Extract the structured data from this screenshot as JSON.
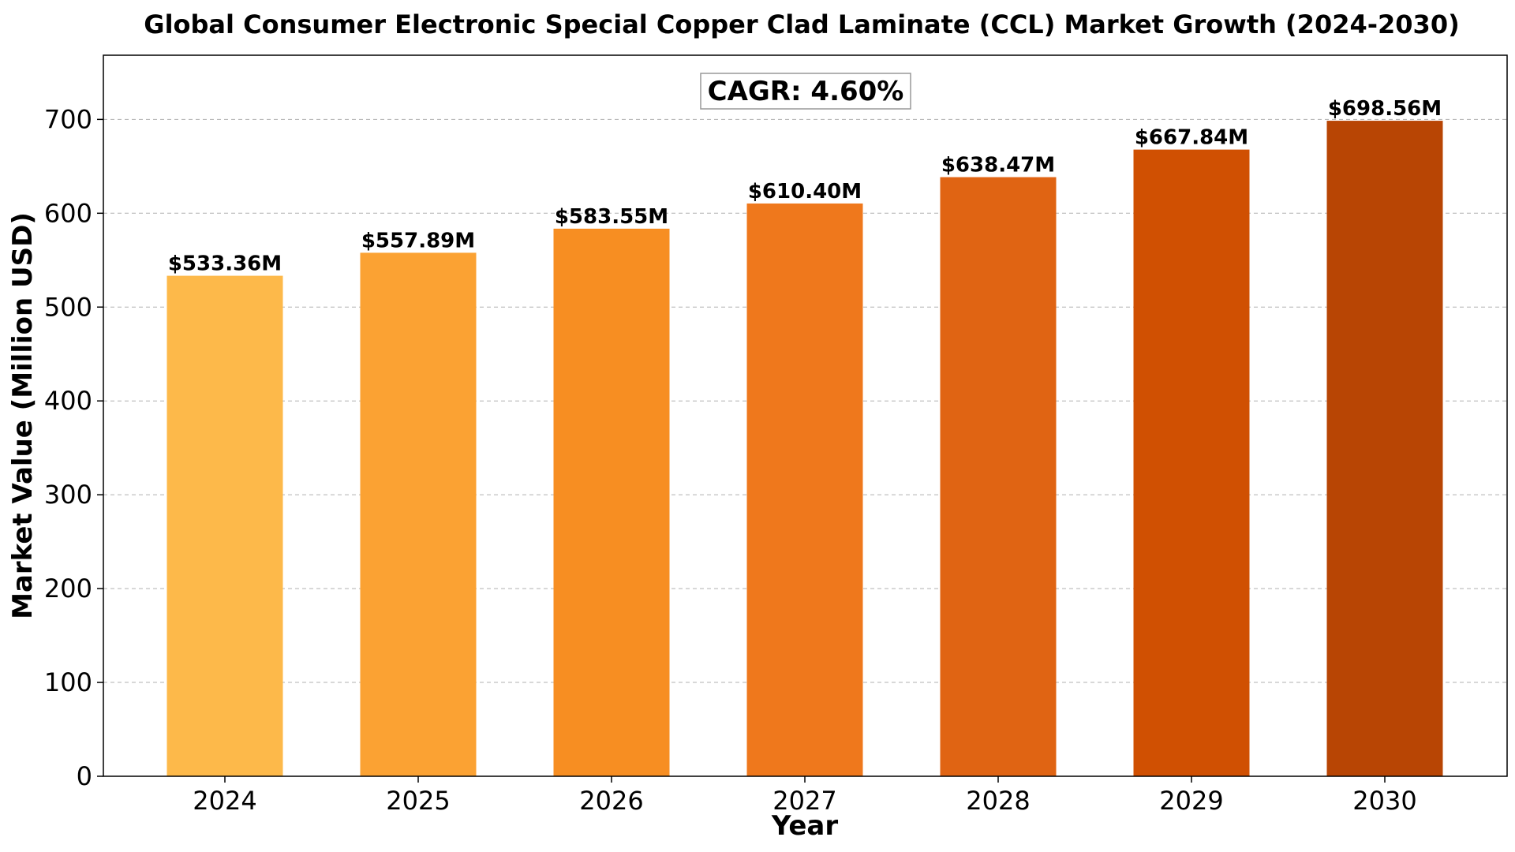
{
  "chart_data": {
    "type": "bar",
    "title": "Global Consumer Electronic Special Copper Clad Laminate (CCL) Market Growth (2024-2030)",
    "xlabel": "Year",
    "ylabel": "Market Value (Million USD)",
    "categories": [
      "2024",
      "2025",
      "2026",
      "2027",
      "2028",
      "2029",
      "2030"
    ],
    "values": [
      533.36,
      557.89,
      583.55,
      610.4,
      638.47,
      667.84,
      698.56
    ],
    "value_labels": [
      "$533.36M",
      "$557.89M",
      "$583.55M",
      "$610.40M",
      "$638.47M",
      "$667.84M",
      "$698.56M"
    ],
    "bar_colors": [
      "#FDB94A",
      "#FBA233",
      "#F78E22",
      "#EF781C",
      "#E06413",
      "#D05002",
      "#B84504"
    ],
    "ylim": [
      0,
      768.4
    ],
    "yticks": [
      0,
      100,
      200,
      300,
      400,
      500,
      600,
      700
    ],
    "grid": true,
    "annotation": "CAGR: 4.60%"
  }
}
